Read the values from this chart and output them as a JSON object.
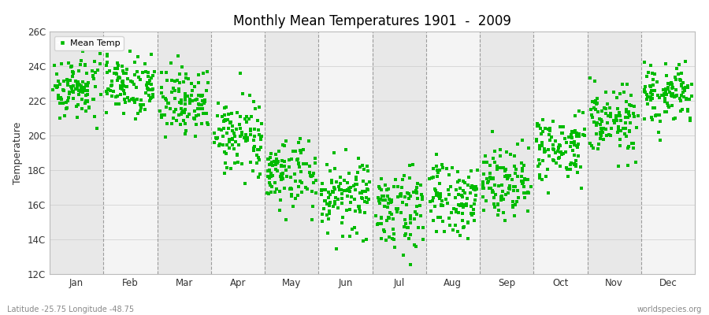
{
  "title": "Monthly Mean Temperatures 1901  -  2009",
  "ylabel": "Temperature",
  "dot_color": "#00BB00",
  "bg_color": "#ffffff",
  "plot_bg_even": "#e8e8e8",
  "plot_bg_odd": "#f4f4f4",
  "ylim": [
    12,
    26
  ],
  "yticks": [
    12,
    14,
    16,
    18,
    20,
    22,
    24,
    26
  ],
  "ytick_labels": [
    "12C",
    "14C",
    "16C",
    "18C",
    "20C",
    "22C",
    "24C",
    "26C"
  ],
  "months": [
    "Jan",
    "Feb",
    "Mar",
    "Apr",
    "May",
    "Jun",
    "Jul",
    "Aug",
    "Sep",
    "Oct",
    "Nov",
    "Dec"
  ],
  "mean_temps": [
    22.8,
    23.0,
    22.0,
    20.0,
    17.8,
    16.5,
    15.8,
    16.3,
    17.5,
    19.2,
    20.8,
    22.3
  ],
  "std_temps": [
    0.9,
    0.9,
    1.0,
    1.0,
    1.1,
    1.1,
    1.1,
    1.1,
    1.0,
    1.0,
    1.0,
    0.9
  ],
  "n_years": 109,
  "legend_label": "Mean Temp",
  "footer_left": "Latitude -25.75 Longitude -48.75",
  "footer_right": "worldspecies.org",
  "marker_size": 5
}
